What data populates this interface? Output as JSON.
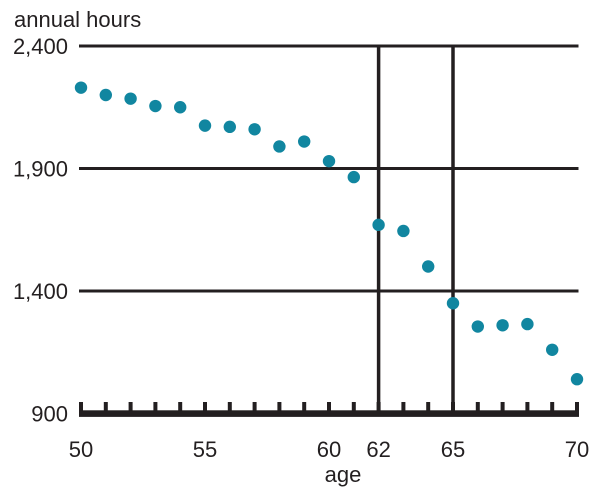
{
  "chart_data": {
    "type": "scatter",
    "title": "annual hours",
    "xlabel": "age",
    "ylabel": "annual hours",
    "x": [
      50,
      51,
      52,
      53,
      54,
      55,
      56,
      57,
      58,
      59,
      60,
      61,
      62,
      63,
      64,
      65,
      66,
      67,
      68,
      69,
      70
    ],
    "y": [
      2230,
      2200,
      2185,
      2155,
      2150,
      2075,
      2070,
      2060,
      1990,
      2010,
      1930,
      1865,
      1670,
      1645,
      1500,
      1350,
      1255,
      1260,
      1265,
      1160,
      1040
    ],
    "xlim": [
      50,
      70
    ],
    "ylim": [
      900,
      2400
    ],
    "x_tick_step": 1,
    "x_tick_labels": [
      {
        "value": 50,
        "label": "50"
      },
      {
        "value": 55,
        "label": "55"
      },
      {
        "value": 60,
        "label": "60"
      },
      {
        "value": 62,
        "label": "62"
      },
      {
        "value": 65,
        "label": "65"
      },
      {
        "value": 70,
        "label": "70"
      }
    ],
    "y_gridlines": [
      {
        "value": 2400,
        "label": "2,400"
      },
      {
        "value": 1900,
        "label": "1,900"
      },
      {
        "value": 1400,
        "label": "1,400"
      },
      {
        "value": 900,
        "label": "900"
      }
    ],
    "reference_vlines": [
      62,
      65
    ],
    "grid": "horizontal",
    "legend": "none",
    "colors": {
      "point": "#1186a0",
      "line": "#231f20",
      "text": "#231f20",
      "background": "#ffffff"
    }
  }
}
